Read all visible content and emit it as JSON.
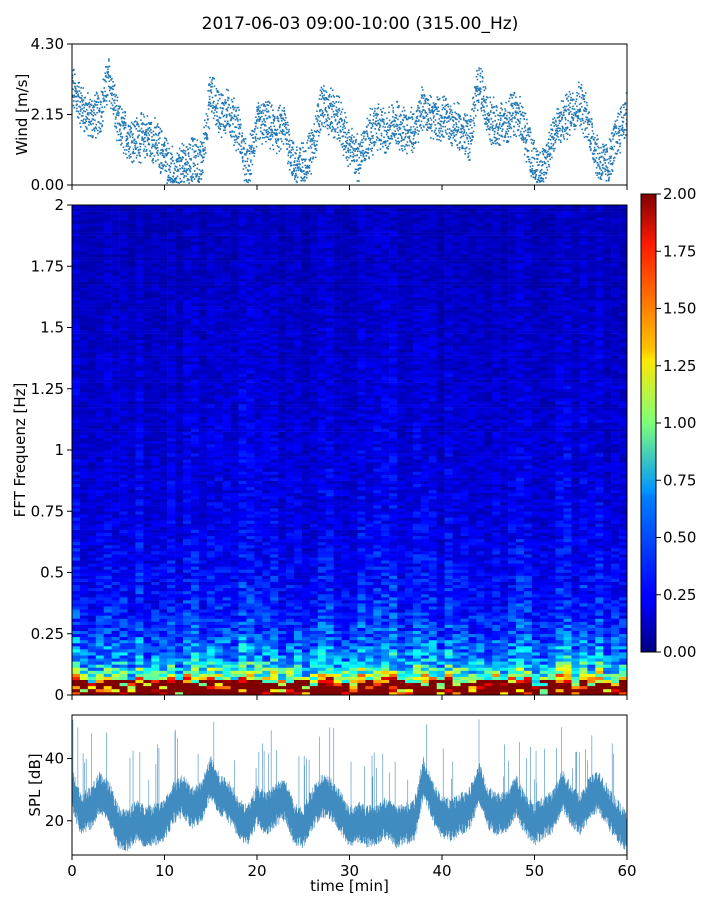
{
  "figure": {
    "title": "2017-06-03 09:00-10:00 (315.00_Hz)"
  },
  "chart_data": [
    {
      "type": "scatter",
      "panel": "wind",
      "title": "",
      "xlabel": "",
      "ylabel": "Wind [m/s]",
      "xlim": [
        0,
        60
      ],
      "ylim": [
        0,
        4.3
      ],
      "yticks": [
        0,
        2.15,
        4.3
      ],
      "ytick_labels": [
        "0.00",
        "2.15",
        "4.30"
      ],
      "grid": false,
      "color": "#1f77b4",
      "series": [
        {
          "x": [
            0,
            1,
            2,
            3,
            4,
            5,
            6,
            7,
            8,
            9,
            10,
            11,
            12,
            13,
            14,
            15,
            16,
            17,
            18,
            19,
            20,
            21,
            22,
            23,
            24,
            25,
            26,
            27,
            28,
            29,
            30,
            31,
            32,
            33,
            34,
            35,
            36,
            37,
            38,
            39,
            40,
            41,
            42,
            43,
            44,
            45,
            46,
            47,
            48,
            49,
            50,
            51,
            52,
            53,
            54,
            55,
            56,
            57,
            58,
            59,
            60
          ],
          "y": [
            3.0,
            2.4,
            2.0,
            2.2,
            3.3,
            1.8,
            1.5,
            1.4,
            1.5,
            1.3,
            0.9,
            0.3,
            0.6,
            0.8,
            0.6,
            2.8,
            2.2,
            2.2,
            1.7,
            0.4,
            1.8,
            1.9,
            1.6,
            1.8,
            0.6,
            0.6,
            1.1,
            2.4,
            2.2,
            1.9,
            1.1,
            0.8,
            1.5,
            1.8,
            1.6,
            1.9,
            1.7,
            1.6,
            2.4,
            2.0,
            2.0,
            1.9,
            1.7,
            1.4,
            3.2,
            2.0,
            1.8,
            1.9,
            2.2,
            1.6,
            0.6,
            0.4,
            1.6,
            1.9,
            2.3,
            2.5,
            1.7,
            0.7,
            0.6,
            1.6,
            2.2
          ]
        }
      ]
    },
    {
      "type": "heatmap",
      "panel": "spectrogram",
      "title": "",
      "xlabel": "",
      "ylabel": "FFT Frequenz [Hz]",
      "xlim": [
        0,
        60
      ],
      "ylim": [
        0,
        2
      ],
      "yticks": [
        0,
        0.25,
        0.5,
        0.75,
        1,
        1.25,
        1.5,
        1.75,
        2
      ],
      "ytick_labels": [
        "0",
        "0.25",
        "0.5",
        "0.75",
        "1",
        "1.25",
        "1.5",
        "1.75",
        "2"
      ],
      "colormap": "jet",
      "clim": [
        0,
        2
      ],
      "colorbar_ticks": [
        "0.00",
        "0.25",
        "0.50",
        "0.75",
        "1.00",
        "1.25",
        "1.50",
        "1.75",
        "2.00"
      ],
      "profile": {
        "freq_hz": [
          0,
          0.03,
          0.06,
          0.1,
          0.15,
          0.25,
          0.35,
          0.5,
          0.75,
          1.0,
          1.5,
          2.0
        ],
        "typical_value": [
          2.0,
          1.8,
          1.2,
          0.8,
          0.55,
          0.38,
          0.3,
          0.25,
          0.2,
          0.18,
          0.15,
          0.12
        ]
      }
    },
    {
      "type": "line",
      "panel": "spl",
      "title": "",
      "xlabel": "time [min]",
      "ylabel": "SPL [dB]",
      "xlim": [
        0,
        60
      ],
      "ylim": [
        9,
        54
      ],
      "yticks": [
        20,
        40
      ],
      "ytick_labels": [
        "20",
        "40"
      ],
      "xticks": [
        0,
        10,
        20,
        30,
        40,
        50,
        60
      ],
      "xtick_labels": [
        "0",
        "10",
        "20",
        "30",
        "40",
        "50",
        "60"
      ],
      "grid": false,
      "color": "#1f77b4",
      "series": [
        {
          "x": [
            0,
            1,
            2,
            3,
            4,
            5,
            6,
            7,
            8,
            9,
            10,
            11,
            12,
            13,
            14,
            15,
            16,
            17,
            18,
            19,
            20,
            21,
            22,
            23,
            24,
            25,
            26,
            27,
            28,
            29,
            30,
            31,
            32,
            33,
            34,
            35,
            36,
            37,
            38,
            39,
            40,
            41,
            42,
            43,
            44,
            45,
            46,
            47,
            48,
            49,
            50,
            51,
            52,
            53,
            54,
            55,
            56,
            57,
            58,
            59,
            60
          ],
          "y": [
            30,
            22,
            24,
            29,
            26,
            18,
            17,
            20,
            18,
            19,
            20,
            26,
            28,
            24,
            26,
            34,
            28,
            26,
            21,
            18,
            25,
            22,
            25,
            27,
            19,
            18,
            24,
            28,
            27,
            23,
            18,
            20,
            18,
            19,
            21,
            18,
            19,
            20,
            34,
            26,
            21,
            20,
            22,
            24,
            32,
            24,
            22,
            23,
            28,
            22,
            19,
            21,
            23,
            30,
            25,
            22,
            28,
            29,
            24,
            20,
            16
          ]
        }
      ]
    }
  ]
}
